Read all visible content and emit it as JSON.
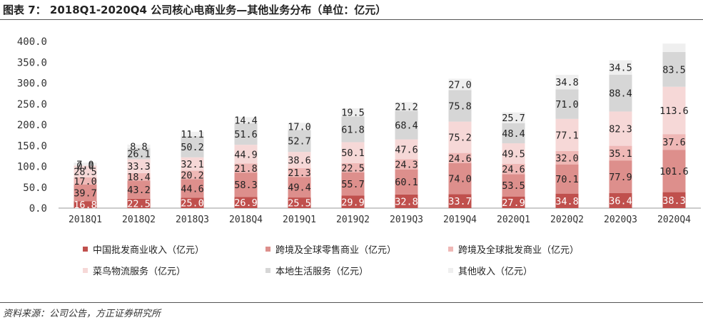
{
  "figure": {
    "title": "图表 7： 2018Q1-2020Q4 公司核心电商业务—其他业务分布（单位：亿元）",
    "source": "资料来源：公司公告，方正证券研究所"
  },
  "colors": {
    "s0": "#c0504d",
    "s1": "#dd8f8c",
    "s2": "#efb8b6",
    "s3": "#f6d8d7",
    "s4": "#d6d6d6",
    "s5": "#efefef"
  },
  "chart_data": {
    "type": "bar",
    "stacked": true,
    "title": "",
    "xlabel": "",
    "ylabel": "",
    "ylim": [
      0,
      400
    ],
    "yticks": [
      "0.0",
      "50.0",
      "100.0",
      "150.0",
      "200.0",
      "250.0",
      "300.0",
      "350.0",
      "400.0"
    ],
    "grid": false,
    "legend_position": "bottom",
    "categories": [
      "2018Q1",
      "2018Q2",
      "2018Q3",
      "2018Q4",
      "2019Q1",
      "2019Q2",
      "2019Q3",
      "2019Q4",
      "2020Q1",
      "2020Q2",
      "2020Q3",
      "2020Q4"
    ],
    "series": [
      {
        "name": "中国批发商业收入（亿元）",
        "values": [
          16.8,
          22.5,
          25.0,
          26.9,
          25.5,
          29.9,
          32.8,
          33.7,
          27.9,
          34.8,
          36.4,
          38.3
        ]
      },
      {
        "name": "跨境及全球零售商业（亿元）",
        "values": [
          39.7,
          43.2,
          44.6,
          58.3,
          49.4,
          55.7,
          60.1,
          74.0,
          53.5,
          70.1,
          77.9,
          101.6
        ]
      },
      {
        "name": "跨境及全球批发商业（亿元）",
        "values": [
          17.0,
          18.4,
          20.2,
          21.8,
          21.3,
          22.5,
          24.3,
          24.6,
          24.6,
          32.0,
          35.1,
          37.6
        ]
      },
      {
        "name": "菜鸟物流服务（亿元）",
        "values": [
          28.5,
          33.3,
          32.1,
          44.9,
          38.6,
          50.1,
          47.6,
          75.2,
          49.5,
          77.1,
          82.3,
          113.6
        ]
      },
      {
        "name": "本地生活服务（亿元）",
        "values": [
          0.0,
          26.1,
          50.2,
          51.6,
          52.7,
          61.8,
          68.4,
          75.8,
          48.4,
          71.0,
          88.4,
          83.5
        ]
      },
      {
        "name": "其他收入（亿元）",
        "values": [
          7.0,
          8.8,
          11.1,
          14.4,
          17.0,
          19.5,
          21.2,
          27.0,
          25.7,
          34.8,
          34.5,
          20.0
        ]
      }
    ],
    "labels": [
      [
        "16.8",
        "22.5",
        "25.0",
        "26.9",
        "25.5",
        "29.9",
        "32.8",
        "33.7",
        "27.9",
        "34.8",
        "36.4",
        "38.3"
      ],
      [
        "39.7",
        "43.2",
        "44.6",
        "58.3",
        "49.4",
        "55.7",
        "60.1",
        "74.0",
        "53.5",
        "70.1",
        "77.9",
        "101.6"
      ],
      [
        "17.0",
        "18.4",
        "20.2",
        "21.8",
        "21.3",
        "22.5",
        "24.3",
        "24.6",
        "24.6",
        "32.0",
        "35.1",
        "37.6"
      ],
      [
        "28.5",
        "33.3",
        "32.1",
        "44.9",
        "38.6",
        "50.1",
        "47.6",
        "75.2",
        "49.5",
        "77.1",
        "82.3",
        "113.6"
      ],
      [
        "0.0",
        "26.1",
        "50.2",
        "51.6",
        "52.7",
        "61.8",
        "68.4",
        "75.8",
        "48.4",
        "71.0",
        "88.4",
        "83.5"
      ],
      [
        "7.0",
        "8.8",
        "11.1",
        "14.4",
        "17.0",
        "19.5",
        "21.2",
        "27.0",
        "25.7",
        "34.8",
        "34.5",
        ""
      ]
    ]
  }
}
